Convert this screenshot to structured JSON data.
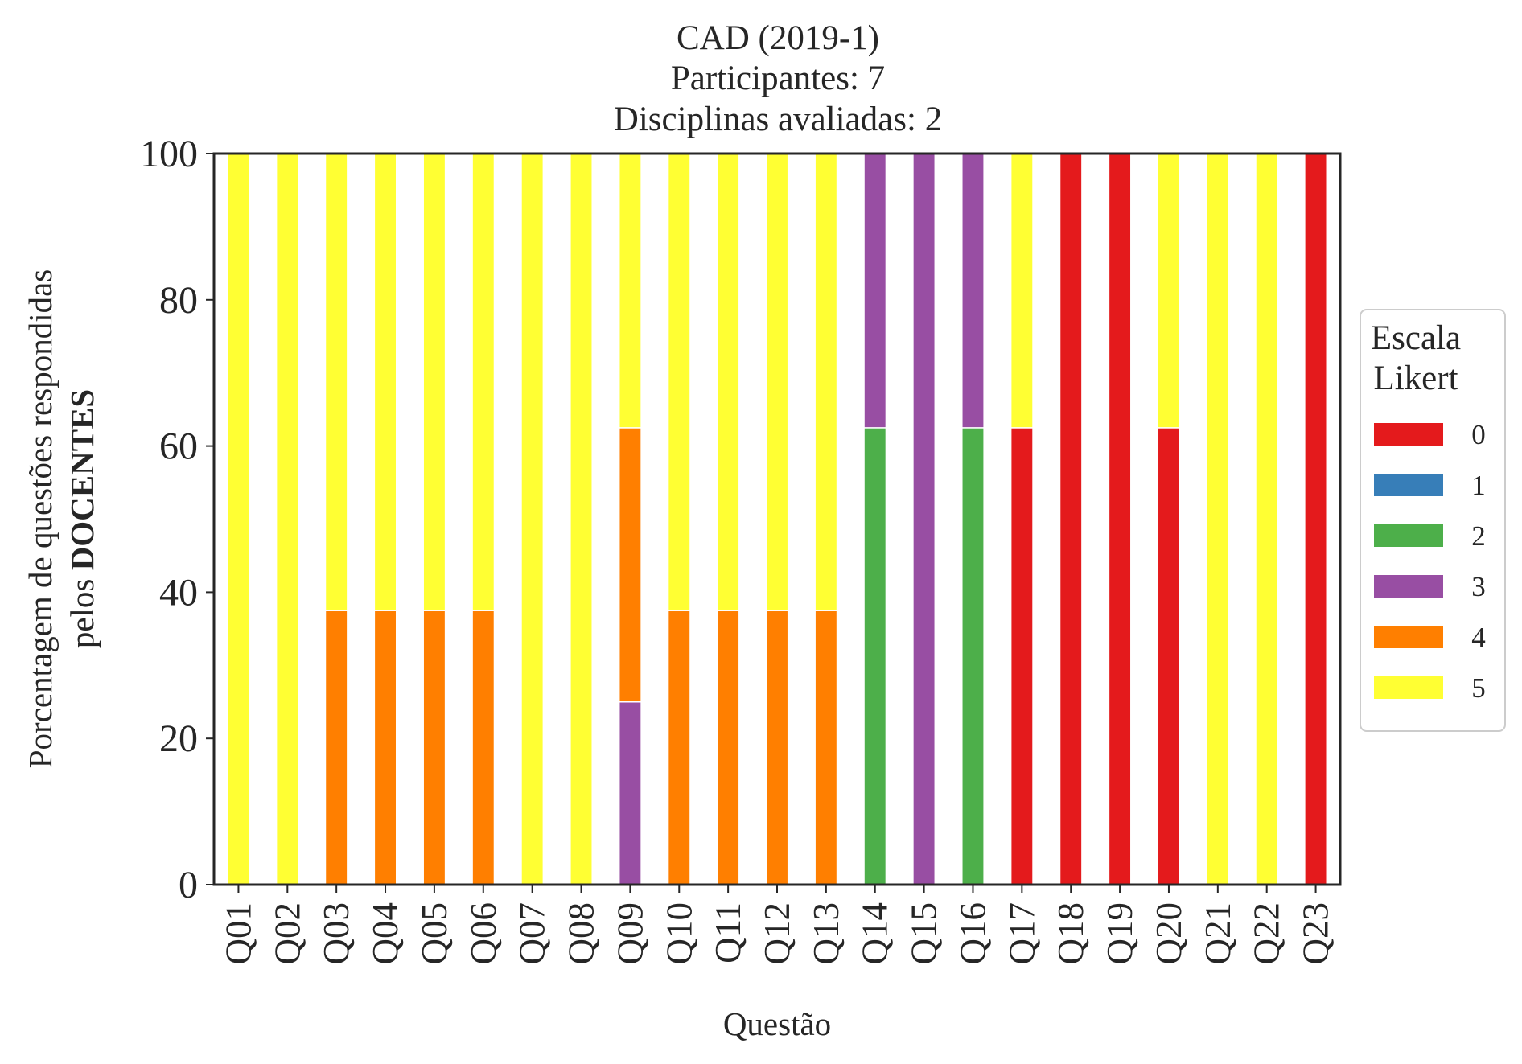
{
  "chart_data": {
    "type": "bar",
    "stacked": true,
    "title_lines": [
      "CAD (2019-1)",
      "Participantes: 7",
      "Disciplinas avaliadas: 2"
    ],
    "xlabel": "Questão",
    "ylabel_line1": "Porcentagem de questões respondidas",
    "ylabel_line2_prefix": "pelos ",
    "ylabel_line2_bold": "DOCENTES",
    "ylim": [
      0,
      100
    ],
    "yticks": [
      0,
      20,
      40,
      60,
      80,
      100
    ],
    "grid": false,
    "legend": {
      "title_lines": [
        "Escala",
        "Likert"
      ],
      "placement": "right-center"
    },
    "categories": [
      "Q01",
      "Q02",
      "Q03",
      "Q04",
      "Q05",
      "Q06",
      "Q07",
      "Q08",
      "Q09",
      "Q10",
      "Q11",
      "Q12",
      "Q13",
      "Q14",
      "Q15",
      "Q16",
      "Q17",
      "Q18",
      "Q19",
      "Q20",
      "Q21",
      "Q22",
      "Q23"
    ],
    "series": [
      {
        "name": "0",
        "color": "#e41a1c",
        "values": [
          0,
          0,
          0,
          0,
          0,
          0,
          0,
          0,
          0,
          0,
          0,
          0,
          0,
          0,
          0,
          0,
          62.5,
          100,
          100,
          62.5,
          0,
          0,
          100
        ]
      },
      {
        "name": "1",
        "color": "#377eb8",
        "values": [
          0,
          0,
          0,
          0,
          0,
          0,
          0,
          0,
          0,
          0,
          0,
          0,
          0,
          0,
          0,
          0,
          0,
          0,
          0,
          0,
          0,
          0,
          0
        ]
      },
      {
        "name": "2",
        "color": "#4daf4a",
        "values": [
          0,
          0,
          0,
          0,
          0,
          0,
          0,
          0,
          0,
          0,
          0,
          0,
          0,
          62.5,
          0,
          62.5,
          0,
          0,
          0,
          0,
          0,
          0,
          0
        ]
      },
      {
        "name": "3",
        "color": "#984ea3",
        "values": [
          0,
          0,
          0,
          0,
          0,
          0,
          0,
          0,
          25,
          0,
          0,
          0,
          0,
          37.5,
          100,
          37.5,
          0,
          0,
          0,
          0,
          0,
          0,
          0
        ]
      },
      {
        "name": "4",
        "color": "#ff7f00",
        "values": [
          0,
          0,
          37.5,
          37.5,
          37.5,
          37.5,
          0,
          0,
          37.5,
          37.5,
          37.5,
          37.5,
          37.5,
          0,
          0,
          0,
          0,
          0,
          0,
          0,
          0,
          0,
          0
        ]
      },
      {
        "name": "5",
        "color": "#ffff33",
        "values": [
          100,
          100,
          62.5,
          62.5,
          62.5,
          62.5,
          100,
          100,
          37.5,
          62.5,
          62.5,
          62.5,
          62.5,
          0,
          0,
          0,
          37.5,
          0,
          0,
          37.5,
          100,
          100,
          0
        ]
      }
    ]
  }
}
